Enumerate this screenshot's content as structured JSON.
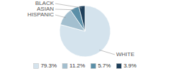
{
  "chart_data": {
    "type": "pie",
    "categories": [
      "WHITE",
      "HISPANIC",
      "ASIAN",
      "BLACK"
    ],
    "values": [
      79.3,
      11.2,
      5.7,
      3.9
    ],
    "value_labels": [
      "79.3%",
      "11.2%",
      "5.7%",
      "3.9%"
    ],
    "colors": [
      "#d4e3ed",
      "#a3bfcf",
      "#5b8fa8",
      "#1e3f5a"
    ],
    "legend": "bottom"
  }
}
